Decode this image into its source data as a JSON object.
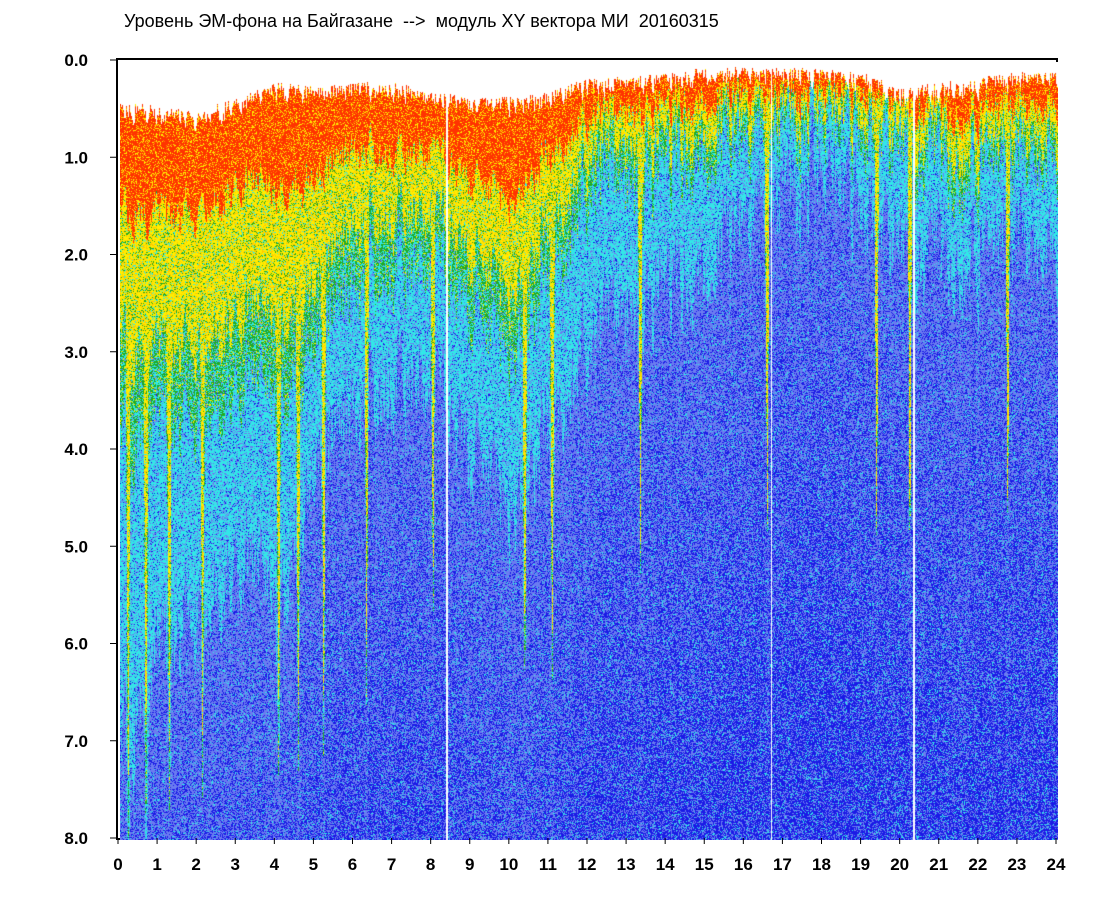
{
  "title": "Уровень ЭМ-фона на Байгазане  -->  модуль XY вектора МИ  20160315",
  "chart_data": {
    "type": "heatmap",
    "title": "Уровень ЭМ-фона на Байгазане  -->  модуль XY вектора МИ  20160315",
    "xlabel": "",
    "ylabel": "",
    "xlim": [
      0,
      24
    ],
    "ylim": [
      8.0,
      0.0
    ],
    "y_axis_inverted": true,
    "x_ticks": [
      "0",
      "1",
      "2",
      "3",
      "4",
      "5",
      "6",
      "7",
      "8",
      "9",
      "10",
      "11",
      "12",
      "13",
      "14",
      "15",
      "16",
      "17",
      "18",
      "19",
      "20",
      "21",
      "22",
      "23",
      "24"
    ],
    "y_ticks": [
      "0.0",
      "1.0",
      "2.0",
      "3.0",
      "4.0",
      "5.0",
      "6.0",
      "7.0",
      "8.0"
    ],
    "grid": false,
    "colormap": [
      "#1a1ae6",
      "#6a7cf0",
      "#30e8e8",
      "#22aa22",
      "#ffee00",
      "#ff3300"
    ],
    "gaps_hours": [
      8.35,
      16.65,
      20.3
    ],
    "bright_streaks_hours": [
      0.2,
      0.65,
      1.25,
      2.1,
      4.05,
      4.55,
      5.2,
      6.3,
      8.0,
      10.35,
      11.05,
      13.3,
      16.55,
      19.35,
      20.2,
      22.7
    ],
    "top_edge_by_hour": {
      "hours": [
        0,
        1,
        2,
        3,
        4,
        5,
        6,
        7,
        8,
        9,
        10,
        11,
        12,
        13,
        14,
        15,
        16,
        17,
        18,
        19,
        20,
        21,
        22,
        23,
        24
      ],
      "values": [
        0.4,
        0.45,
        0.5,
        0.35,
        0.2,
        0.25,
        0.2,
        0.2,
        0.3,
        0.35,
        0.35,
        0.3,
        0.15,
        0.15,
        0.1,
        0.05,
        0.05,
        0.05,
        0.05,
        0.1,
        0.25,
        0.2,
        0.15,
        0.1,
        0.1
      ]
    },
    "color_band_lower_edge_by_hour": {
      "hours": [
        0,
        1,
        2,
        3,
        4,
        5,
        6,
        7,
        8,
        9,
        10,
        11,
        12,
        13,
        14,
        15,
        16,
        17,
        18,
        19,
        20,
        21,
        22,
        23,
        24
      ],
      "red_to": [
        1.5,
        1.6,
        1.5,
        1.2,
        1.3,
        1.2,
        0.9,
        0.9,
        0.9,
        1.2,
        1.4,
        0.9,
        0.6,
        0.5,
        0.4,
        0.35,
        0.3,
        0.35,
        0.3,
        0.35,
        0.5,
        0.5,
        0.5,
        0.45,
        0.45
      ],
      "yellow_to": [
        2.8,
        3.0,
        2.8,
        2.5,
        2.6,
        2.3,
        1.7,
        1.5,
        1.5,
        2.0,
        2.3,
        1.6,
        1.0,
        0.85,
        0.7,
        0.6,
        0.55,
        0.55,
        0.5,
        0.6,
        0.85,
        0.8,
        0.8,
        0.75,
        0.75
      ],
      "green_to": [
        3.8,
        3.8,
        3.5,
        3.2,
        3.4,
        2.9,
        2.3,
        2.0,
        2.0,
        2.6,
        2.9,
        2.1,
        1.4,
        1.2,
        1.0,
        0.85,
        0.8,
        0.75,
        0.7,
        0.85,
        1.1,
        1.1,
        1.05,
        1.0,
        1.0
      ],
      "cyan_to": [
        7.0,
        6.2,
        5.5,
        5.0,
        5.5,
        4.2,
        3.6,
        3.2,
        3.2,
        4.0,
        4.5,
        3.6,
        3.0,
        2.5,
        2.2,
        2.0,
        1.6,
        1.4,
        1.2,
        1.6,
        2.2,
        2.0,
        1.9,
        1.8,
        2.0
      ]
    }
  }
}
